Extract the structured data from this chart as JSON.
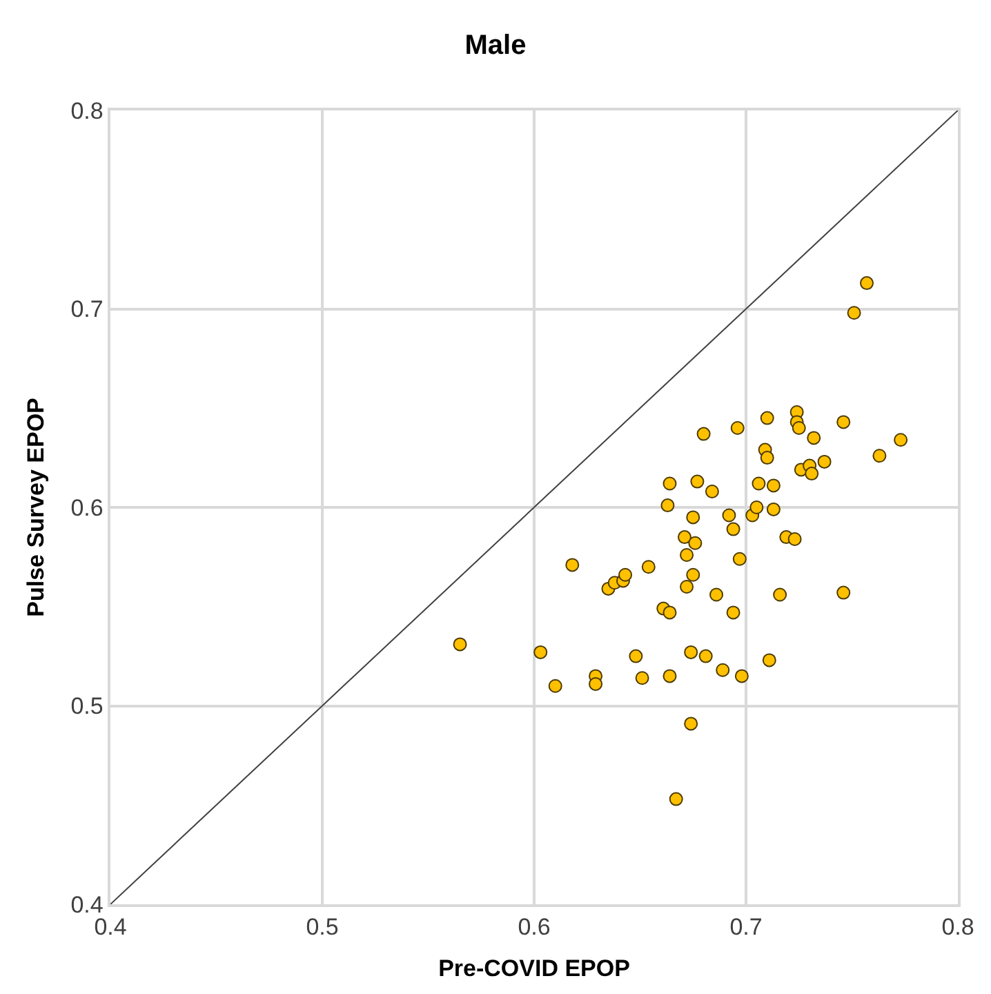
{
  "chart_data": {
    "type": "scatter",
    "title": "Male",
    "xlabel": "Pre-COVID EPOP",
    "ylabel": "Pulse Survey EPOP",
    "xlim": [
      0.4,
      0.8
    ],
    "ylim": [
      0.4,
      0.8
    ],
    "xticks": [
      0.4,
      0.5,
      0.6,
      0.7,
      0.8
    ],
    "yticks": [
      0.4,
      0.5,
      0.6,
      0.7,
      0.8
    ],
    "grid": true,
    "legend": false,
    "series": [
      {
        "marker": "circle",
        "color": "#ffc000",
        "x": [
          0.565,
          0.603,
          0.61,
          0.618,
          0.629,
          0.629,
          0.635,
          0.638,
          0.642,
          0.643,
          0.648,
          0.651,
          0.654,
          0.661,
          0.664,
          0.663,
          0.664,
          0.664,
          0.667,
          0.671,
          0.672,
          0.672,
          0.674,
          0.674,
          0.675,
          0.675,
          0.676,
          0.677,
          0.68,
          0.681,
          0.684,
          0.686,
          0.689,
          0.692,
          0.694,
          0.694,
          0.696,
          0.697,
          0.698,
          0.703,
          0.705,
          0.706,
          0.709,
          0.71,
          0.71,
          0.711,
          0.713,
          0.713,
          0.716,
          0.719,
          0.723,
          0.724,
          0.724,
          0.725,
          0.726,
          0.73,
          0.731,
          0.732,
          0.737,
          0.746,
          0.746,
          0.751,
          0.757,
          0.763,
          0.773
        ],
        "values": [
          0.531,
          0.527,
          0.51,
          0.571,
          0.515,
          0.511,
          0.559,
          0.562,
          0.563,
          0.566,
          0.525,
          0.514,
          0.57,
          0.549,
          0.547,
          0.601,
          0.612,
          0.515,
          0.453,
          0.585,
          0.576,
          0.56,
          0.527,
          0.491,
          0.566,
          0.595,
          0.582,
          0.613,
          0.637,
          0.525,
          0.608,
          0.556,
          0.518,
          0.596,
          0.547,
          0.589,
          0.64,
          0.574,
          0.515,
          0.596,
          0.6,
          0.612,
          0.629,
          0.625,
          0.645,
          0.523,
          0.611,
          0.599,
          0.556,
          0.585,
          0.584,
          0.648,
          0.643,
          0.64,
          0.619,
          0.621,
          0.617,
          0.635,
          0.623,
          0.643,
          0.557,
          0.698,
          0.713,
          0.626,
          0.634
        ]
      },
      {
        "type": "line",
        "marker": "none",
        "color": "#404040",
        "x": [
          0.4,
          0.8
        ],
        "values": [
          0.4,
          0.8
        ]
      }
    ]
  }
}
